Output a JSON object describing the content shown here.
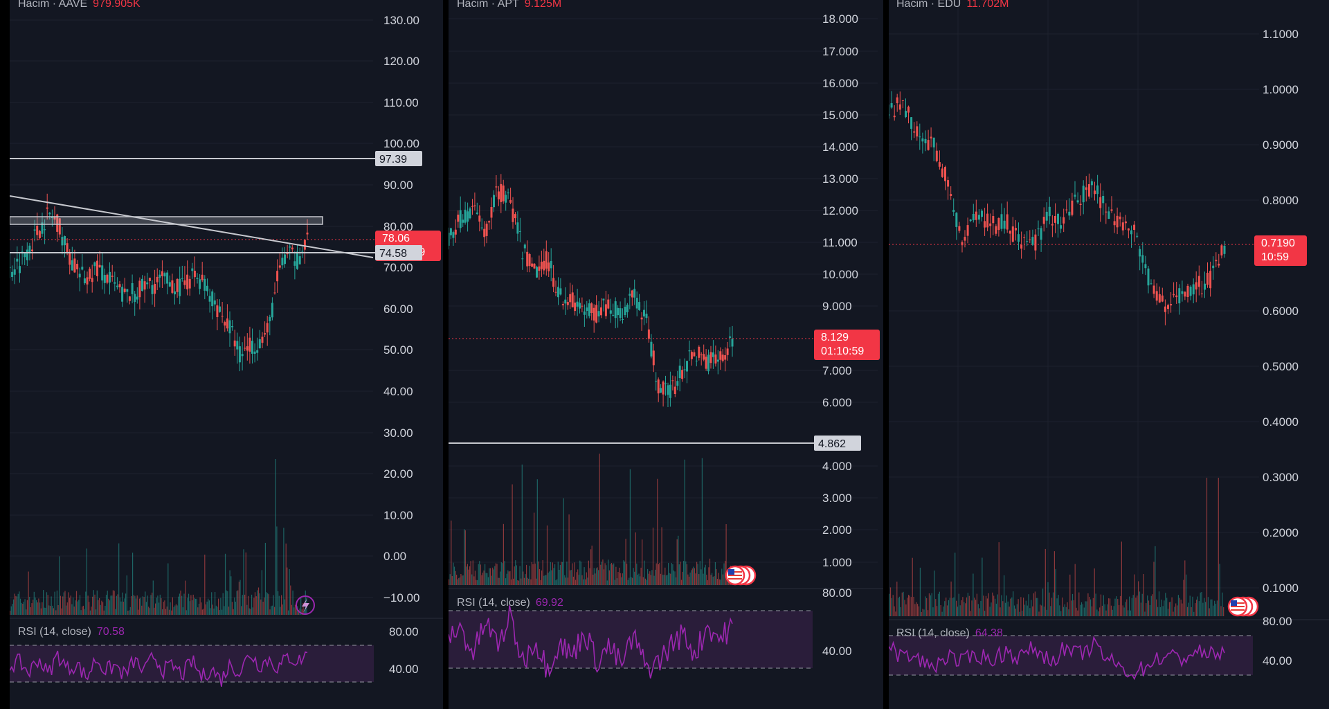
{
  "colors": {
    "background": "#131722",
    "grid": "#1e222d",
    "axis_text": "#d1d4dc",
    "up": "#26a69a",
    "down": "#ef5350",
    "rsi_line": "#9c27b0",
    "rsi_band": "#2a1d3a",
    "price_badge": "#f23645",
    "level_badge": "#d1d4dc",
    "drawing_line": "#c7c9cf"
  },
  "panels": [
    {
      "id": "aave",
      "volume_label": "Hacim · AAVE",
      "volume_value": "979.905K",
      "price_ticks": [
        "130.00",
        "120.00",
        "110.00",
        "100.00",
        "90.00",
        "80.00",
        "70.00",
        "60.00",
        "50.00",
        "40.00",
        "30.00",
        "20.00",
        "10.00",
        "0.00",
        "−10.00"
      ],
      "price_range": [
        -10,
        130
      ],
      "last_price": "78.06",
      "countdown": "01:10:59",
      "levels": [
        {
          "label": "97.39",
          "value": 97.39
        },
        {
          "label": "74.58",
          "value": 74.58
        }
      ],
      "rsi_label": "RSI (14, close)",
      "rsi_value": "70.58",
      "rsi_ticks": [
        "80.00",
        "40.00"
      ],
      "icon": "lightning-icon"
    },
    {
      "id": "apt",
      "volume_label": "Hacim · APT",
      "volume_value": "9.125M",
      "price_ticks": [
        "18.000",
        "17.000",
        "16.000",
        "15.000",
        "14.000",
        "13.000",
        "12.000",
        "11.000",
        "10.000",
        "9.000",
        "7.000",
        "6.000",
        "4.000",
        "3.000",
        "2.000",
        "1.000"
      ],
      "price_range": [
        1,
        18
      ],
      "last_price": "8.129",
      "countdown": "01:10:59",
      "levels": [
        {
          "label": "4.862",
          "value": 4.862
        }
      ],
      "rsi_label": "RSI (14, close)",
      "rsi_value": "69.92",
      "rsi_ticks": [
        "80.00",
        "40.00"
      ],
      "icon": "us-flag-icon"
    },
    {
      "id": "edu",
      "volume_label": "Hacim · EDU",
      "volume_value": "11.702M",
      "price_ticks": [
        "1.1000",
        "1.0000",
        "0.9000",
        "0.8000",
        "0.6000",
        "0.5000",
        "0.4000",
        "0.3000",
        "0.2000",
        "0.1000"
      ],
      "price_range": [
        0.1,
        1.1
      ],
      "last_price": "0.7190",
      "countdown": "10:59",
      "levels": [],
      "rsi_label": "RSI (14, close)",
      "rsi_value": "64.38",
      "rsi_ticks": [
        "80.00",
        "40.00"
      ],
      "icon": "us-flag-icon"
    }
  ],
  "chart_data": [
    {
      "type": "candlestick",
      "title": "Hacim · AAVE",
      "ylim": [
        -10,
        130
      ],
      "close_path": [
        70,
        72,
        76,
        80,
        84,
        82,
        75,
        70,
        68,
        71,
        69,
        66,
        64,
        65,
        66,
        67,
        68,
        67,
        66,
        69,
        68,
        64,
        60,
        56,
        50,
        52,
        53,
        56,
        70,
        74,
        73,
        78
      ],
      "rsi_path": [
        58,
        62,
        50,
        66,
        48,
        70,
        54,
        60,
        44,
        66,
        52,
        58,
        47,
        64,
        50,
        69,
        53,
        57,
        48,
        63,
        45,
        55,
        42,
        60,
        50,
        72,
        58,
        65,
        55,
        68,
        62,
        71
      ]
    },
    {
      "type": "candlestick",
      "title": "Hacim · APT",
      "ylim": [
        1,
        18
      ],
      "close_path": [
        11.3,
        11.9,
        12.2,
        11.4,
        12.8,
        12.4,
        10.9,
        10.2,
        10.6,
        9.5,
        9.3,
        9.0,
        8.9,
        9.2,
        8.8,
        9.6,
        8.7,
        6.7,
        6.4,
        7.2,
        7.7,
        7.4,
        7.5,
        8.1
      ],
      "rsi_path": [
        62,
        68,
        50,
        72,
        56,
        76,
        44,
        60,
        40,
        58,
        48,
        66,
        45,
        55,
        42,
        62,
        40,
        44,
        56,
        64,
        50,
        70,
        60,
        70
      ]
    },
    {
      "type": "candlestick",
      "title": "Hacim · EDU",
      "ylim": [
        0.1,
        1.1
      ],
      "close_path": [
        0.97,
        0.98,
        0.93,
        0.91,
        0.84,
        0.74,
        0.79,
        0.76,
        0.77,
        0.73,
        0.73,
        0.78,
        0.77,
        0.81,
        0.84,
        0.78,
        0.77,
        0.74,
        0.65,
        0.61,
        0.64,
        0.65,
        0.66,
        0.72
      ],
      "rsi_path": [
        66,
        60,
        56,
        48,
        60,
        52,
        62,
        55,
        64,
        58,
        68,
        54,
        66,
        60,
        70,
        56,
        46,
        42,
        54,
        60,
        56,
        64,
        60,
        64
      ]
    }
  ]
}
